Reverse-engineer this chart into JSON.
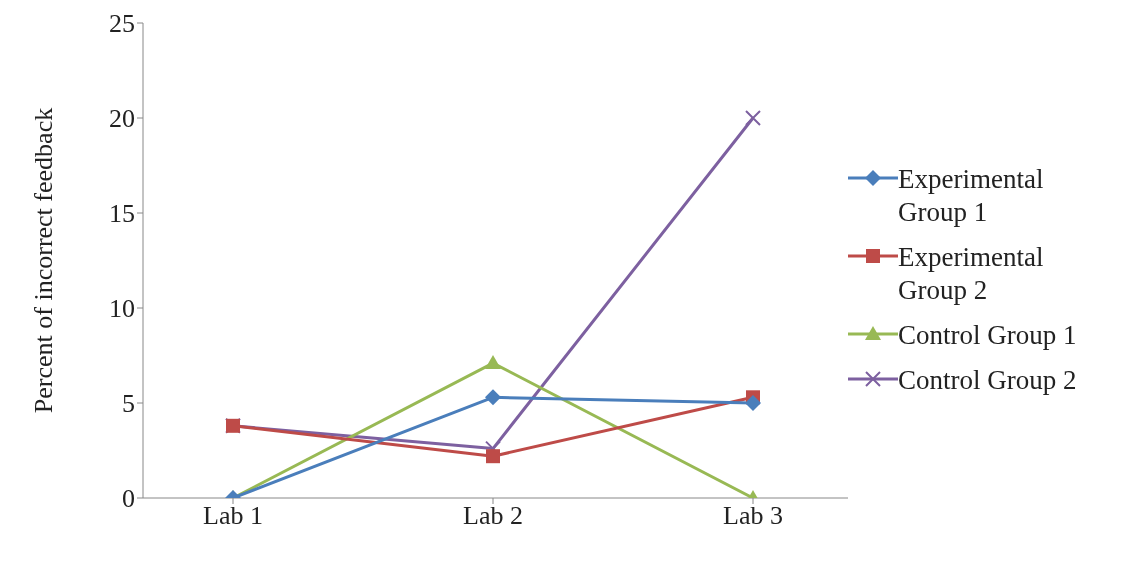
{
  "chart_data": {
    "type": "line",
    "ylabel": "Percent of incorrect feedback",
    "categories": [
      "Lab 1",
      "Lab 2",
      "Lab 3"
    ],
    "series": [
      {
        "name": "Experimental Group 1",
        "color": "#4a7ebb",
        "marker": "diamond",
        "values": [
          0,
          5.3,
          5.0
        ]
      },
      {
        "name": "Experimental Group 2",
        "color": "#be4b48",
        "marker": "square",
        "values": [
          3.8,
          2.2,
          5.3
        ]
      },
      {
        "name": "Control Group 1",
        "color": "#98b954",
        "marker": "triangle",
        "values": [
          0,
          7.1,
          0
        ]
      },
      {
        "name": "Control Group 2",
        "color": "#7d60a0",
        "marker": "cross",
        "values": [
          3.8,
          2.6,
          20
        ]
      }
    ],
    "ylim": [
      0,
      25
    ],
    "yticks": [
      0,
      5,
      10,
      15,
      20,
      25
    ],
    "grid": false,
    "legend": "right"
  }
}
